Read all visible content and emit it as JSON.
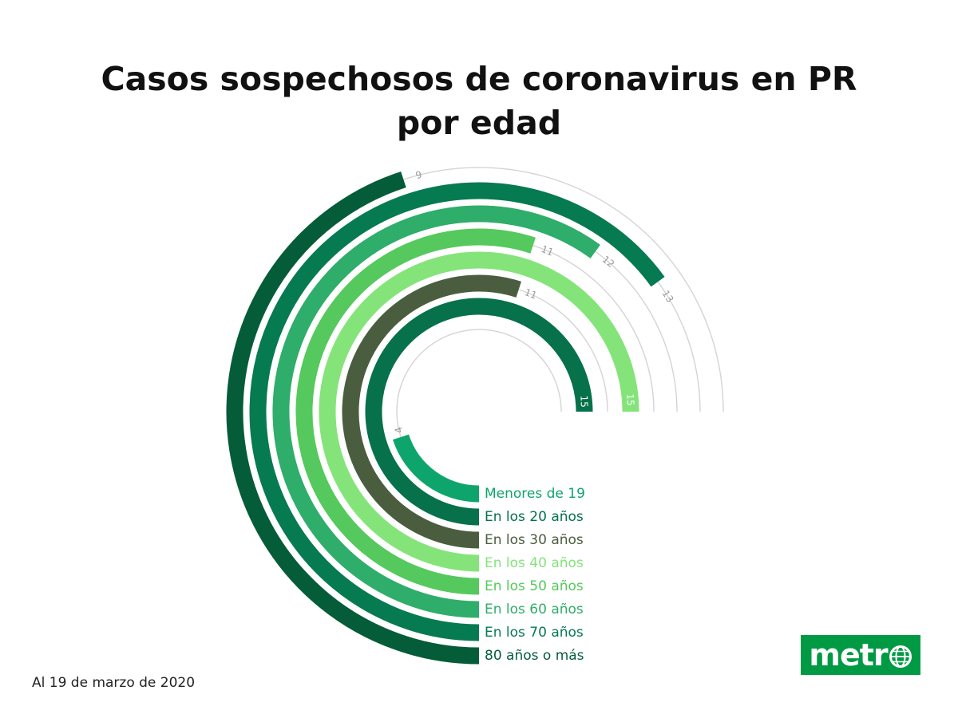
{
  "title_line1": "Casos sospechosos de coronavirus en PR",
  "title_line2": "por edad",
  "footnote": "Al 19 de marzo de 2020",
  "logo_text": "metr",
  "logo_globe_icon": "globe-icon",
  "colors": {
    "track": "#d4d4d4",
    "value_label": "#9a9a9a",
    "logo_bg": "#009a44"
  },
  "chart_data": {
    "type": "radial-bar",
    "title": "Casos sospechosos de coronavirus en PR por edad",
    "max_value": 20,
    "series": [
      {
        "category": "Menores de 19",
        "value": 4,
        "value_label": "4",
        "color": "#0ea56c"
      },
      {
        "category": "En los 20 años",
        "value": 15,
        "value_label": "15",
        "color": "#06714a"
      },
      {
        "category": "En los 30 años",
        "value": 11,
        "value_label": "11",
        "color": "#4a5e3f"
      },
      {
        "category": "En los 40 años",
        "value": 15,
        "value_label": "15",
        "color": "#84e47a"
      },
      {
        "category": "En los 50 años",
        "value": 11,
        "value_label": "11",
        "color": "#55c95d"
      },
      {
        "category": "En los 60 años",
        "value": 12,
        "value_label": "12",
        "color": "#2fad6a"
      },
      {
        "category": "En los 70 años",
        "value": 13,
        "value_label": "13",
        "color": "#067a50"
      },
      {
        "category": "80 años o más",
        "value": 9,
        "value_label": "9",
        "color": "#055c39"
      }
    ]
  }
}
